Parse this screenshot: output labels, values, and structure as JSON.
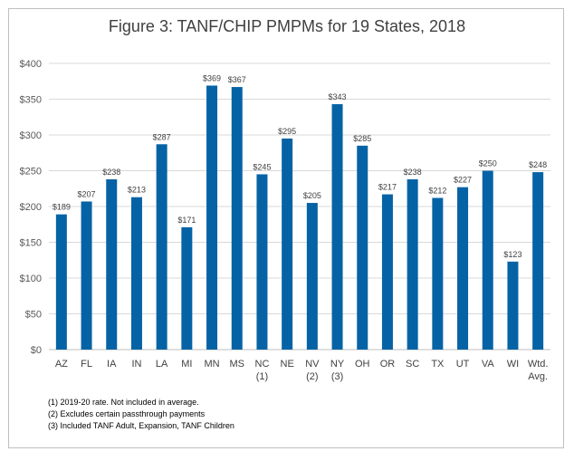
{
  "chart_data": {
    "type": "bar",
    "title": "Figure 3: TANF/CHIP PMPMs for 19 States, 2018",
    "categories": [
      [
        "AZ"
      ],
      [
        "FL"
      ],
      [
        "IA"
      ],
      [
        "IN"
      ],
      [
        "LA"
      ],
      [
        "MI"
      ],
      [
        "MN"
      ],
      [
        "MS"
      ],
      [
        "NC",
        "(1)"
      ],
      [
        "NE"
      ],
      [
        "NV",
        "(2)"
      ],
      [
        "NY",
        "(3)"
      ],
      [
        "OH"
      ],
      [
        "OR"
      ],
      [
        "SC"
      ],
      [
        "TX"
      ],
      [
        "UT"
      ],
      [
        "VA"
      ],
      [
        "WI"
      ],
      [
        "Wtd.",
        "Avg."
      ]
    ],
    "values": [
      189,
      207,
      238,
      213,
      287,
      171,
      369,
      367,
      245,
      295,
      205,
      343,
      285,
      217,
      238,
      212,
      227,
      250,
      123,
      248
    ],
    "data_labels": [
      "$189",
      "$207",
      "$238",
      "$213",
      "$287",
      "$171",
      "$369",
      "$367",
      "$245",
      "$295",
      "$205",
      "$343",
      "$285",
      "$217",
      "$238",
      "$212",
      "$227",
      "$250",
      "$123",
      "$248"
    ],
    "y_ticks": [
      "$0",
      "$50",
      "$100",
      "$150",
      "$200",
      "$250",
      "$300",
      "$350",
      "$400"
    ],
    "ylim": [
      0,
      400
    ],
    "grid": true,
    "bar_color": "#0563a5",
    "xlabel": "",
    "ylabel": ""
  },
  "notes": [
    "(1) 2019-20 rate.  Not included in average.",
    "(2) Excludes certain passthrough payments",
    "(3) Included TANF Adult, Expansion, TANF Children"
  ]
}
